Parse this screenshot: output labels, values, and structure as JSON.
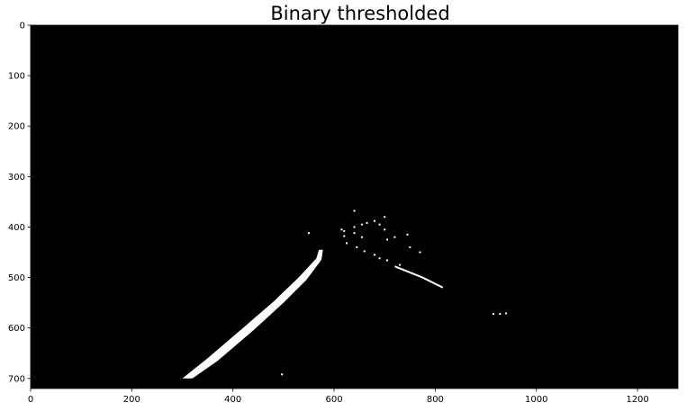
{
  "title": "Binary thresholded",
  "image": {
    "width_units": 1280,
    "height_units": 720,
    "background": "#000000",
    "foreground": "#ffffff"
  },
  "axes": {
    "x_ticks": [
      0,
      200,
      400,
      600,
      800,
      1000,
      1200
    ],
    "y_ticks": [
      0,
      100,
      200,
      300,
      400,
      500,
      600,
      700
    ]
  },
  "features": {
    "left_lane_line": {
      "outer_edge": [
        [
          300,
          700
        ],
        [
          350,
          660
        ],
        [
          420,
          600
        ],
        [
          480,
          548
        ],
        [
          530,
          500
        ],
        [
          565,
          462
        ],
        [
          570,
          445
        ]
      ],
      "inner_edge": [
        [
          578,
          445
        ],
        [
          575,
          465
        ],
        [
          545,
          505
        ],
        [
          500,
          550
        ],
        [
          440,
          605
        ],
        [
          370,
          665
        ],
        [
          320,
          700
        ]
      ]
    },
    "right_lane_segment": [
      [
        720,
        478
      ],
      [
        775,
        500
      ],
      [
        815,
        520
      ]
    ],
    "dots": [
      [
        620,
        408
      ],
      [
        640,
        400
      ],
      [
        655,
        395
      ],
      [
        665,
        392
      ],
      [
        680,
        388
      ],
      [
        620,
        418
      ],
      [
        640,
        412
      ],
      [
        655,
        420
      ],
      [
        690,
        395
      ],
      [
        700,
        405
      ],
      [
        705,
        425
      ],
      [
        720,
        420
      ],
      [
        745,
        415
      ],
      [
        625,
        432
      ],
      [
        645,
        440
      ],
      [
        660,
        448
      ],
      [
        680,
        455
      ],
      [
        690,
        462
      ],
      [
        705,
        466
      ],
      [
        730,
        475
      ],
      [
        750,
        440
      ],
      [
        770,
        450
      ],
      [
        550,
        412
      ],
      [
        640,
        368
      ],
      [
        915,
        572
      ],
      [
        928,
        572
      ],
      [
        940,
        571
      ],
      [
        497,
        692
      ],
      [
        615,
        405
      ],
      [
        700,
        380
      ]
    ]
  }
}
